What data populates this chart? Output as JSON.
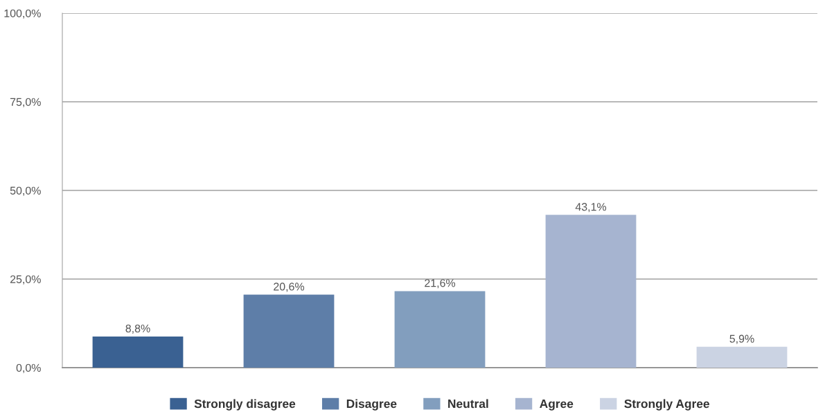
{
  "chart_data": {
    "type": "bar",
    "categories": [
      null
    ],
    "series": [
      {
        "name": "Strongly disagree",
        "color": "#3a6192",
        "values": [
          8.8
        ],
        "value_labels": [
          "8,8%"
        ]
      },
      {
        "name": "Disagree",
        "color": "#5e7ea8",
        "values": [
          20.6
        ],
        "value_labels": [
          "20,6%"
        ]
      },
      {
        "name": "Neutral",
        "color": "#829ebe",
        "values": [
          21.6
        ],
        "value_labels": [
          "21,6%"
        ]
      },
      {
        "name": "Agree",
        "color": "#a6b4d0",
        "values": [
          43.1
        ],
        "value_labels": [
          "43,1%"
        ]
      },
      {
        "name": "Strongly Agree",
        "color": "#cbd3e3",
        "values": [
          5.9
        ],
        "value_labels": [
          "5,9%"
        ]
      }
    ],
    "ylim": [
      0,
      100
    ],
    "yticks": [
      {
        "value": 0,
        "label": "0,0%"
      },
      {
        "value": 25,
        "label": "25,0%"
      },
      {
        "value": 50,
        "label": "50,0%"
      },
      {
        "value": 75,
        "label": "75,0%"
      },
      {
        "value": 100,
        "label": "100,0%"
      }
    ],
    "grid": "y",
    "legend": "bottom"
  }
}
